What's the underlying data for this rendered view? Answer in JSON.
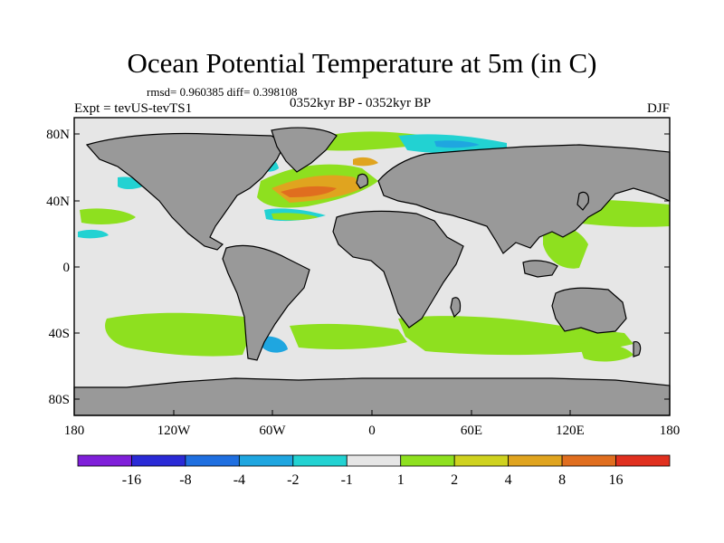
{
  "title": "Ocean Potential Temperature at 5m (in C)",
  "stats_text": "rmsd= 0.960385  diff= 0.398108",
  "left_label": "Expt = tevUS-tevTS1",
  "center_label": "0352kyr BP - 0352kyr BP",
  "right_label": "DJF",
  "lat_ticks": [
    "80N",
    "40N",
    "0",
    "40S",
    "80S"
  ],
  "lon_ticks": [
    "180",
    "120W",
    "60W",
    "0",
    "60E",
    "120E",
    "180"
  ],
  "colorbar": {
    "labels": [
      "-16",
      "-8",
      "-4",
      "-2",
      "-1",
      "1",
      "2",
      "4",
      "8",
      "16"
    ],
    "colors": [
      "#7f1fd9",
      "#2a2ad6",
      "#1f6fe0",
      "#1fa6e0",
      "#22d2d2",
      "#e6e6e6",
      "#8ee01f",
      "#cfd21f",
      "#e0a41f",
      "#e06e1f",
      "#e0301f"
    ]
  },
  "colors": {
    "land": "#999999",
    "ocean_neutral": "#e6e6e6"
  }
}
